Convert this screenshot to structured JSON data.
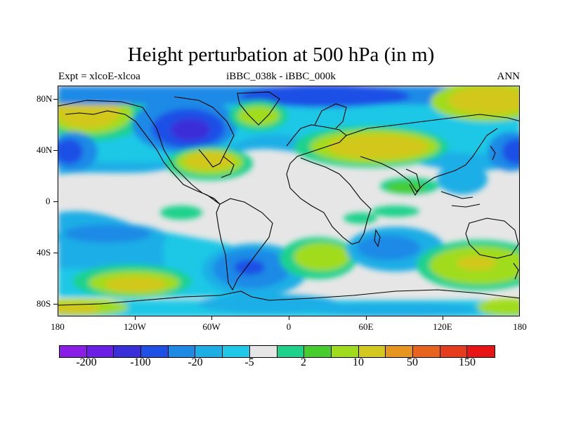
{
  "title": "Height perturbation at 500 hPa (in m)",
  "subtitle_left": "Expt = xlcoE-xlcoa",
  "subtitle_center": "iBBC_038k - iBBC_000k",
  "subtitle_right": "ANN",
  "lat_labels": [
    "80N",
    "40N",
    "0",
    "40S",
    "80S"
  ],
  "lon_labels": [
    "180",
    "120W",
    "60W",
    "0",
    "60E",
    "120E",
    "180"
  ],
  "colorbar": {
    "colors": [
      "#8a1ee6",
      "#6a1ee6",
      "#3a2ed8",
      "#1e50e6",
      "#1e8ae6",
      "#1eaee6",
      "#1ec8e6",
      "#e6e6e6",
      "#1ed28c",
      "#46cd2d",
      "#a0dc1e",
      "#d2c81e",
      "#e6961e",
      "#e6641e",
      "#e63c1e",
      "#e61414"
    ],
    "labels": [
      "-200",
      "-100",
      "-20",
      "-5",
      "2",
      "10",
      "50",
      "150"
    ]
  }
}
